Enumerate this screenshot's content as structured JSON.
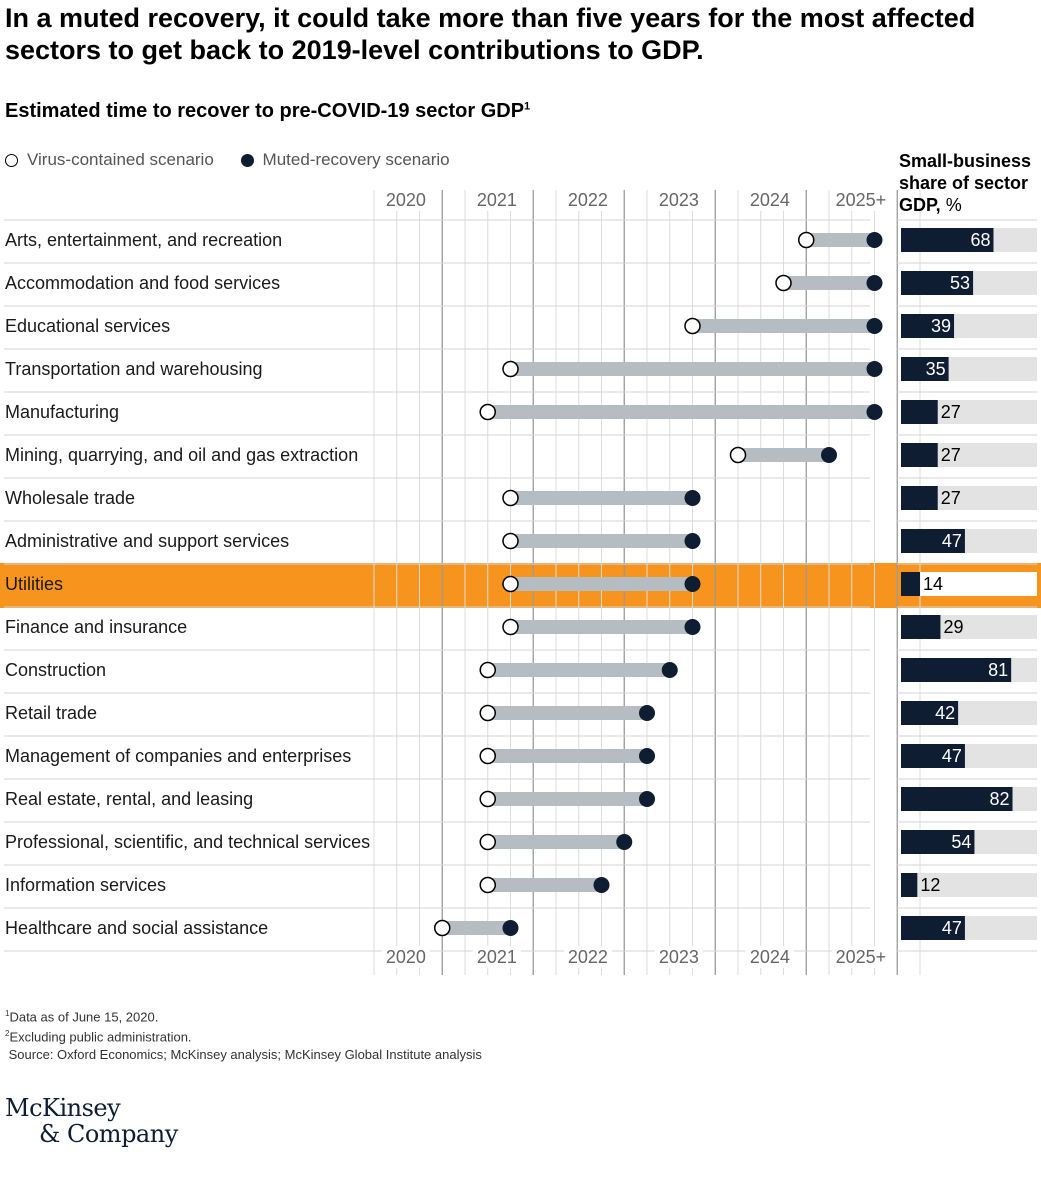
{
  "headline": "In a muted recovery, it could take more than five years for the most affected sectors to get back to 2019-level contributions to GDP.",
  "subtitle": "Estimated time to recover to pre-COVID-19 sector GDP",
  "subtitle_sup": "1",
  "legend": {
    "virus_contained": "Virus-contained scenario",
    "muted_recovery": "Muted-recovery scenario"
  },
  "side_header": {
    "line1": "Small-business",
    "line2": "share of sector",
    "line3": "GDP,",
    "unit": " %"
  },
  "colors": {
    "navy": "#0e1d32",
    "range_bar": "#b5bcc2",
    "highlight": "#f7941d",
    "track": "#e3e3e3",
    "grid": "#dcdcdc"
  },
  "chart_data": {
    "type": "dumbbell",
    "title": "Estimated time to recover to pre-COVID-19 sector GDP",
    "x_unit": "year",
    "x_ticks": [
      "2020",
      "2021",
      "2022",
      "2023",
      "2024",
      "2025+"
    ],
    "x_range": [
      2020.0,
      2026.0
    ],
    "highlight_category": "Utilities",
    "series": [
      {
        "name": "Virus-contained scenario",
        "marker": "open-circle"
      },
      {
        "name": "Muted-recovery scenario",
        "marker": "filled-circle"
      }
    ],
    "rows": [
      {
        "label": "Arts, entertainment, and recreation",
        "virus_contained": 2024.75,
        "muted_recovery": 2025.5,
        "small_business_share": 68
      },
      {
        "label": "Accommodation and food services",
        "virus_contained": 2024.5,
        "muted_recovery": 2025.5,
        "small_business_share": 53
      },
      {
        "label": "Educational services",
        "virus_contained": 2023.5,
        "muted_recovery": 2025.5,
        "small_business_share": 39
      },
      {
        "label": "Transportation and warehousing",
        "virus_contained": 2021.5,
        "muted_recovery": 2025.5,
        "small_business_share": 35
      },
      {
        "label": "Manufacturing",
        "virus_contained": 2021.25,
        "muted_recovery": 2025.5,
        "small_business_share": 27
      },
      {
        "label": "Mining, quarrying, and oil and gas extraction",
        "virus_contained": 2024.0,
        "muted_recovery": 2025.0,
        "small_business_share": 27
      },
      {
        "label": "Wholesale trade",
        "virus_contained": 2021.5,
        "muted_recovery": 2023.5,
        "small_business_share": 27
      },
      {
        "label": "Administrative and support services",
        "virus_contained": 2021.5,
        "muted_recovery": 2023.5,
        "small_business_share": 47
      },
      {
        "label": "Utilities",
        "virus_contained": 2021.5,
        "muted_recovery": 2023.5,
        "small_business_share": 14
      },
      {
        "label": "Finance and insurance",
        "virus_contained": 2021.5,
        "muted_recovery": 2023.5,
        "small_business_share": 29
      },
      {
        "label": "Construction",
        "virus_contained": 2021.25,
        "muted_recovery": 2023.25,
        "small_business_share": 81
      },
      {
        "label": "Retail trade",
        "virus_contained": 2021.25,
        "muted_recovery": 2023.0,
        "small_business_share": 42
      },
      {
        "label": "Management of companies and enterprises",
        "virus_contained": 2021.25,
        "muted_recovery": 2023.0,
        "small_business_share": 47
      },
      {
        "label": "Real estate, rental, and leasing",
        "virus_contained": 2021.25,
        "muted_recovery": 2023.0,
        "small_business_share": 82
      },
      {
        "label": "Professional, scientific, and technical services",
        "virus_contained": 2021.25,
        "muted_recovery": 2022.75,
        "small_business_share": 54
      },
      {
        "label": "Information services",
        "virus_contained": 2021.25,
        "muted_recovery": 2022.5,
        "small_business_share": 12
      },
      {
        "label": "Healthcare and social assistance",
        "virus_contained": 2020.75,
        "muted_recovery": 2021.5,
        "small_business_share": 47
      }
    ],
    "share_range": [
      0,
      100
    ]
  },
  "footnotes": {
    "note1_sup": "1",
    "note1": "Data as of June 15, 2020.",
    "note2_sup": "2",
    "note2": "Excluding public administration.",
    "source": "Source: Oxford Economics; McKinsey analysis; McKinsey Global Institute analysis"
  },
  "logo": {
    "line1": "McKinsey",
    "line2": "& Company"
  }
}
